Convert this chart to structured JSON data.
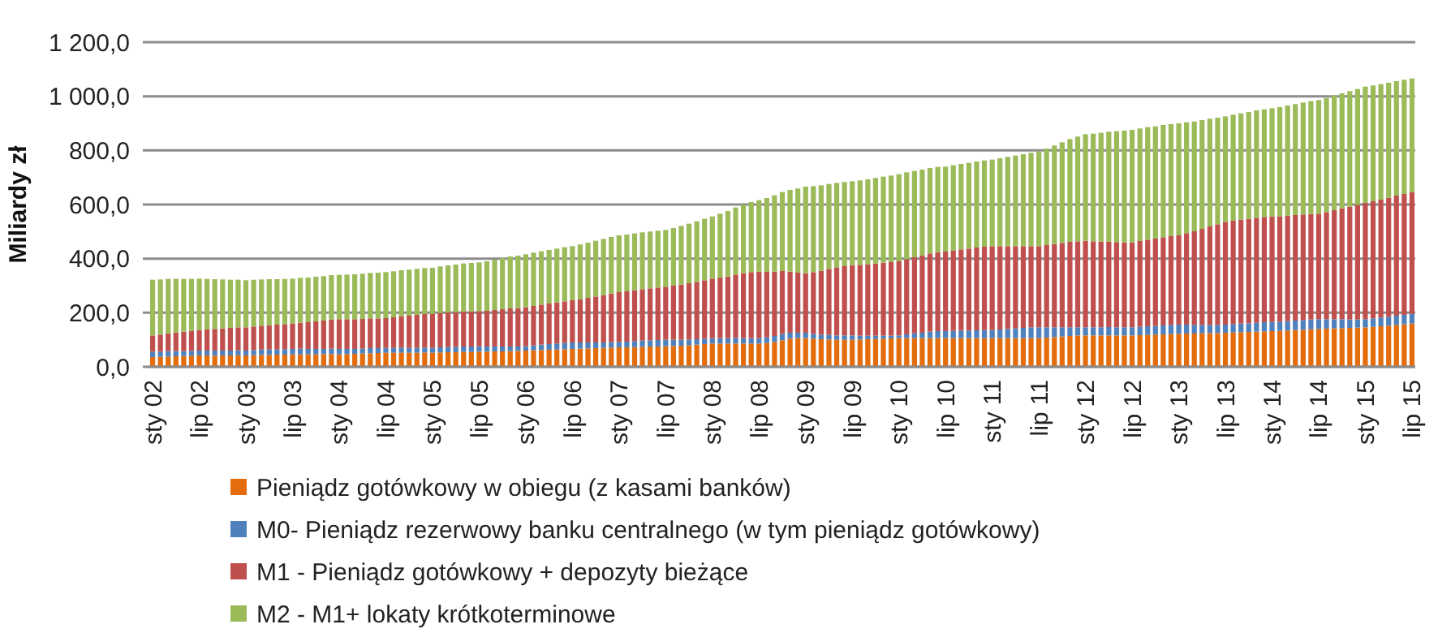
{
  "chart_data": {
    "type": "bar",
    "stacked": true,
    "ylabel": "Miliardy zł",
    "ylim": [
      0,
      1200
    ],
    "yticks": [
      {
        "value": 0,
        "label": "0,0"
      },
      {
        "value": 200,
        "label": "200,0"
      },
      {
        "value": 400,
        "label": "400,0"
      },
      {
        "value": 600,
        "label": "600,0"
      },
      {
        "value": 800,
        "label": "800,0"
      },
      {
        "value": 1000,
        "label": "1 000,0"
      },
      {
        "value": 1200,
        "label": "1 200,0"
      }
    ],
    "grid": "y",
    "legend": "bottom",
    "categories": [
      "sty 02",
      null,
      null,
      null,
      null,
      null,
      "lip 02",
      null,
      null,
      null,
      null,
      null,
      "sty 03",
      null,
      null,
      null,
      null,
      null,
      "lip 03",
      null,
      null,
      null,
      null,
      null,
      "sty 04",
      null,
      null,
      null,
      null,
      null,
      "lip 04",
      null,
      null,
      null,
      null,
      null,
      "sty 05",
      null,
      null,
      null,
      null,
      null,
      "lip 05",
      null,
      null,
      null,
      null,
      null,
      "sty 06",
      null,
      null,
      null,
      null,
      null,
      "lip 06",
      null,
      null,
      null,
      null,
      null,
      "sty 07",
      null,
      null,
      null,
      null,
      null,
      "lip 07",
      null,
      null,
      null,
      null,
      null,
      "sty 08",
      null,
      null,
      null,
      null,
      null,
      "lip 08",
      null,
      null,
      null,
      null,
      null,
      "sty 09",
      null,
      null,
      null,
      null,
      null,
      "lip 09",
      null,
      null,
      null,
      null,
      null,
      "sty 10",
      null,
      null,
      null,
      null,
      null,
      "lip 10",
      null,
      null,
      null,
      null,
      null,
      "sty 11",
      null,
      null,
      null,
      null,
      null,
      "lip 11",
      null,
      null,
      null,
      null,
      null,
      "sty 12",
      null,
      null,
      null,
      null,
      null,
      "lip 12",
      null,
      null,
      null,
      null,
      null,
      "sty 13",
      null,
      null,
      null,
      null,
      null,
      "lip 13",
      null,
      null,
      null,
      null,
      null,
      "sty 14",
      null,
      null,
      null,
      null,
      null,
      "lip 14",
      null,
      null,
      null,
      null,
      null,
      "sty 15",
      null,
      null,
      null,
      null,
      null,
      "lip 15"
    ],
    "series": [
      {
        "name": "Pieniądz gotówkowy w obiegu (z kasami banków)",
        "color": "#e46c0a",
        "values": [
          36,
          37,
          38,
          39,
          40,
          41,
          42,
          42,
          41,
          42,
          42,
          43,
          42,
          43,
          44,
          44,
          45,
          45,
          46,
          46,
          46,
          46,
          47,
          47,
          46,
          47,
          48,
          49,
          50,
          51,
          52,
          52,
          52,
          52,
          52,
          53,
          52,
          53,
          54,
          54,
          55,
          55,
          56,
          56,
          57,
          57,
          58,
          59,
          60,
          61,
          62,
          63,
          64,
          65,
          66,
          67,
          68,
          69,
          70,
          71,
          72,
          72,
          73,
          74,
          75,
          75,
          76,
          77,
          78,
          80,
          82,
          84,
          86,
          86,
          86,
          86,
          86,
          86,
          86,
          88,
          92,
          98,
          104,
          106,
          106,
          104,
          102,
          101,
          100,
          100,
          100,
          101,
          102,
          103,
          104,
          105,
          106,
          106,
          106,
          106,
          106,
          106,
          106,
          106,
          106,
          106,
          106,
          106,
          106,
          106,
          106,
          106,
          106,
          106,
          106,
          108,
          110,
          112,
          114,
          116,
          116,
          116,
          116,
          116,
          116,
          116,
          116,
          117,
          118,
          119,
          120,
          121,
          122,
          123,
          123,
          124,
          125,
          125,
          126,
          127,
          128,
          129,
          130,
          131,
          132,
          133,
          134,
          136,
          137,
          139,
          140,
          141,
          142,
          143,
          144,
          145,
          146,
          148,
          150,
          152,
          155,
          157,
          160
        ]
      },
      {
        "name": "M0- Pieniądz rezerwowy banku centralnego (w tym pieniądz gotówkowy)",
        "color": "#4f81bd",
        "values": [
          20,
          19,
          20,
          19,
          18,
          18,
          18,
          18,
          19,
          18,
          18,
          18,
          18,
          19,
          20,
          20,
          19,
          20,
          20,
          21,
          20,
          20,
          19,
          20,
          20,
          19,
          18,
          18,
          19,
          18,
          18,
          18,
          19,
          18,
          18,
          18,
          18,
          19,
          19,
          20,
          20,
          20,
          20,
          19,
          18,
          18,
          17,
          16,
          16,
          18,
          20,
          21,
          22,
          23,
          24,
          23,
          22,
          21,
          20,
          20,
          20,
          21,
          22,
          23,
          23,
          24,
          24,
          23,
          22,
          21,
          20,
          20,
          20,
          20,
          20,
          21,
          20,
          20,
          20,
          21,
          22,
          24,
          22,
          20,
          20,
          18,
          17,
          17,
          16,
          16,
          16,
          14,
          13,
          12,
          11,
          10,
          10,
          14,
          18,
          20,
          24,
          26,
          26,
          27,
          28,
          28,
          29,
          30,
          30,
          32,
          34,
          36,
          38,
          40,
          40,
          38,
          36,
          34,
          32,
          30,
          30,
          30,
          30,
          31,
          30,
          30,
          30,
          31,
          32,
          32,
          33,
          34,
          34,
          33,
          32,
          31,
          30,
          30,
          30,
          31,
          32,
          32,
          33,
          34,
          34,
          34,
          35,
          35,
          36,
          36,
          36,
          35,
          34,
          33,
          31,
          30,
          30,
          31,
          32,
          33,
          34,
          35,
          36
        ]
      },
      {
        "name": "M1 - Pieniądz gotówkowy + depozyty bieżące",
        "color": "#c0504d",
        "values": [
          60,
          63,
          66,
          69,
          72,
          74,
          76,
          78,
          80,
          82,
          84,
          85,
          86,
          87,
          88,
          90,
          92,
          93,
          94,
          96,
          99,
          102,
          105,
          108,
          110,
          110,
          110,
          110,
          110,
          110,
          110,
          113,
          116,
          119,
          122,
          124,
          126,
          127,
          128,
          128,
          129,
          130,
          130,
          132,
          135,
          138,
          141,
          142,
          144,
          146,
          148,
          150,
          152,
          154,
          156,
          160,
          165,
          170,
          175,
          180,
          184,
          186,
          188,
          190,
          192,
          194,
          196,
          200,
          204,
          208,
          212,
          216,
          220,
          224,
          228,
          234,
          240,
          244,
          246,
          242,
          238,
          232,
          226,
          222,
          220,
          228,
          236,
          244,
          252,
          256,
          260,
          262,
          264,
          267,
          270,
          272,
          274,
          278,
          281,
          285,
          289,
          292,
          294,
          297,
          300,
          303,
          306,
          308,
          310,
          308,
          306,
          304,
          302,
          300,
          300,
          304,
          308,
          312,
          316,
          318,
          320,
          318,
          317,
          316,
          315,
          314,
          314,
          317,
          320,
          323,
          326,
          328,
          330,
          338,
          346,
          355,
          364,
          372,
          380,
          382,
          384,
          386,
          388,
          389,
          390,
          390,
          390,
          390,
          390,
          390,
          390,
          396,
          403,
          410,
          417,
          424,
          430,
          433,
          436,
          440,
          444,
          447,
          450
        ]
      },
      {
        "name": "M2 - M1+ lokaty krótkoterminowe",
        "color": "#9bbb59",
        "values": [
          206,
          204,
          201,
          198,
          195,
          192,
          190,
          187,
          184,
          181,
          178,
          176,
          174,
          173,
          171,
          170,
          168,
          167,
          166,
          166,
          165,
          165,
          164,
          164,
          164,
          165,
          166,
          167,
          168,
          169,
          170,
          170,
          170,
          170,
          170,
          170,
          170,
          172,
          174,
          176,
          178,
          179,
          180,
          183,
          186,
          189,
          192,
          194,
          196,
          197,
          197,
          198,
          199,
          200,
          200,
          202,
          204,
          206,
          208,
          209,
          210,
          210,
          210,
          210,
          210,
          210,
          210,
          213,
          217,
          220,
          224,
          227,
          230,
          236,
          242,
          248,
          254,
          259,
          264,
          273,
          282,
          292,
          302,
          311,
          320,
          318,
          316,
          314,
          312,
          311,
          310,
          312,
          314,
          316,
          318,
          320,
          322,
          321,
          319,
          318,
          316,
          315,
          314,
          315,
          316,
          317,
          318,
          319,
          320,
          325,
          330,
          335,
          340,
          345,
          350,
          357,
          364,
          372,
          380,
          387,
          394,
          398,
          402,
          406,
          410,
          413,
          416,
          416,
          416,
          415,
          415,
          414,
          414,
          410,
          406,
          402,
          398,
          394,
          390,
          392,
          393,
          395,
          397,
          398,
          400,
          403,
          407,
          410,
          414,
          417,
          420,
          422,
          424,
          425,
          427,
          428,
          430,
          428,
          427,
          425,
          423,
          422,
          420
        ]
      }
    ]
  }
}
